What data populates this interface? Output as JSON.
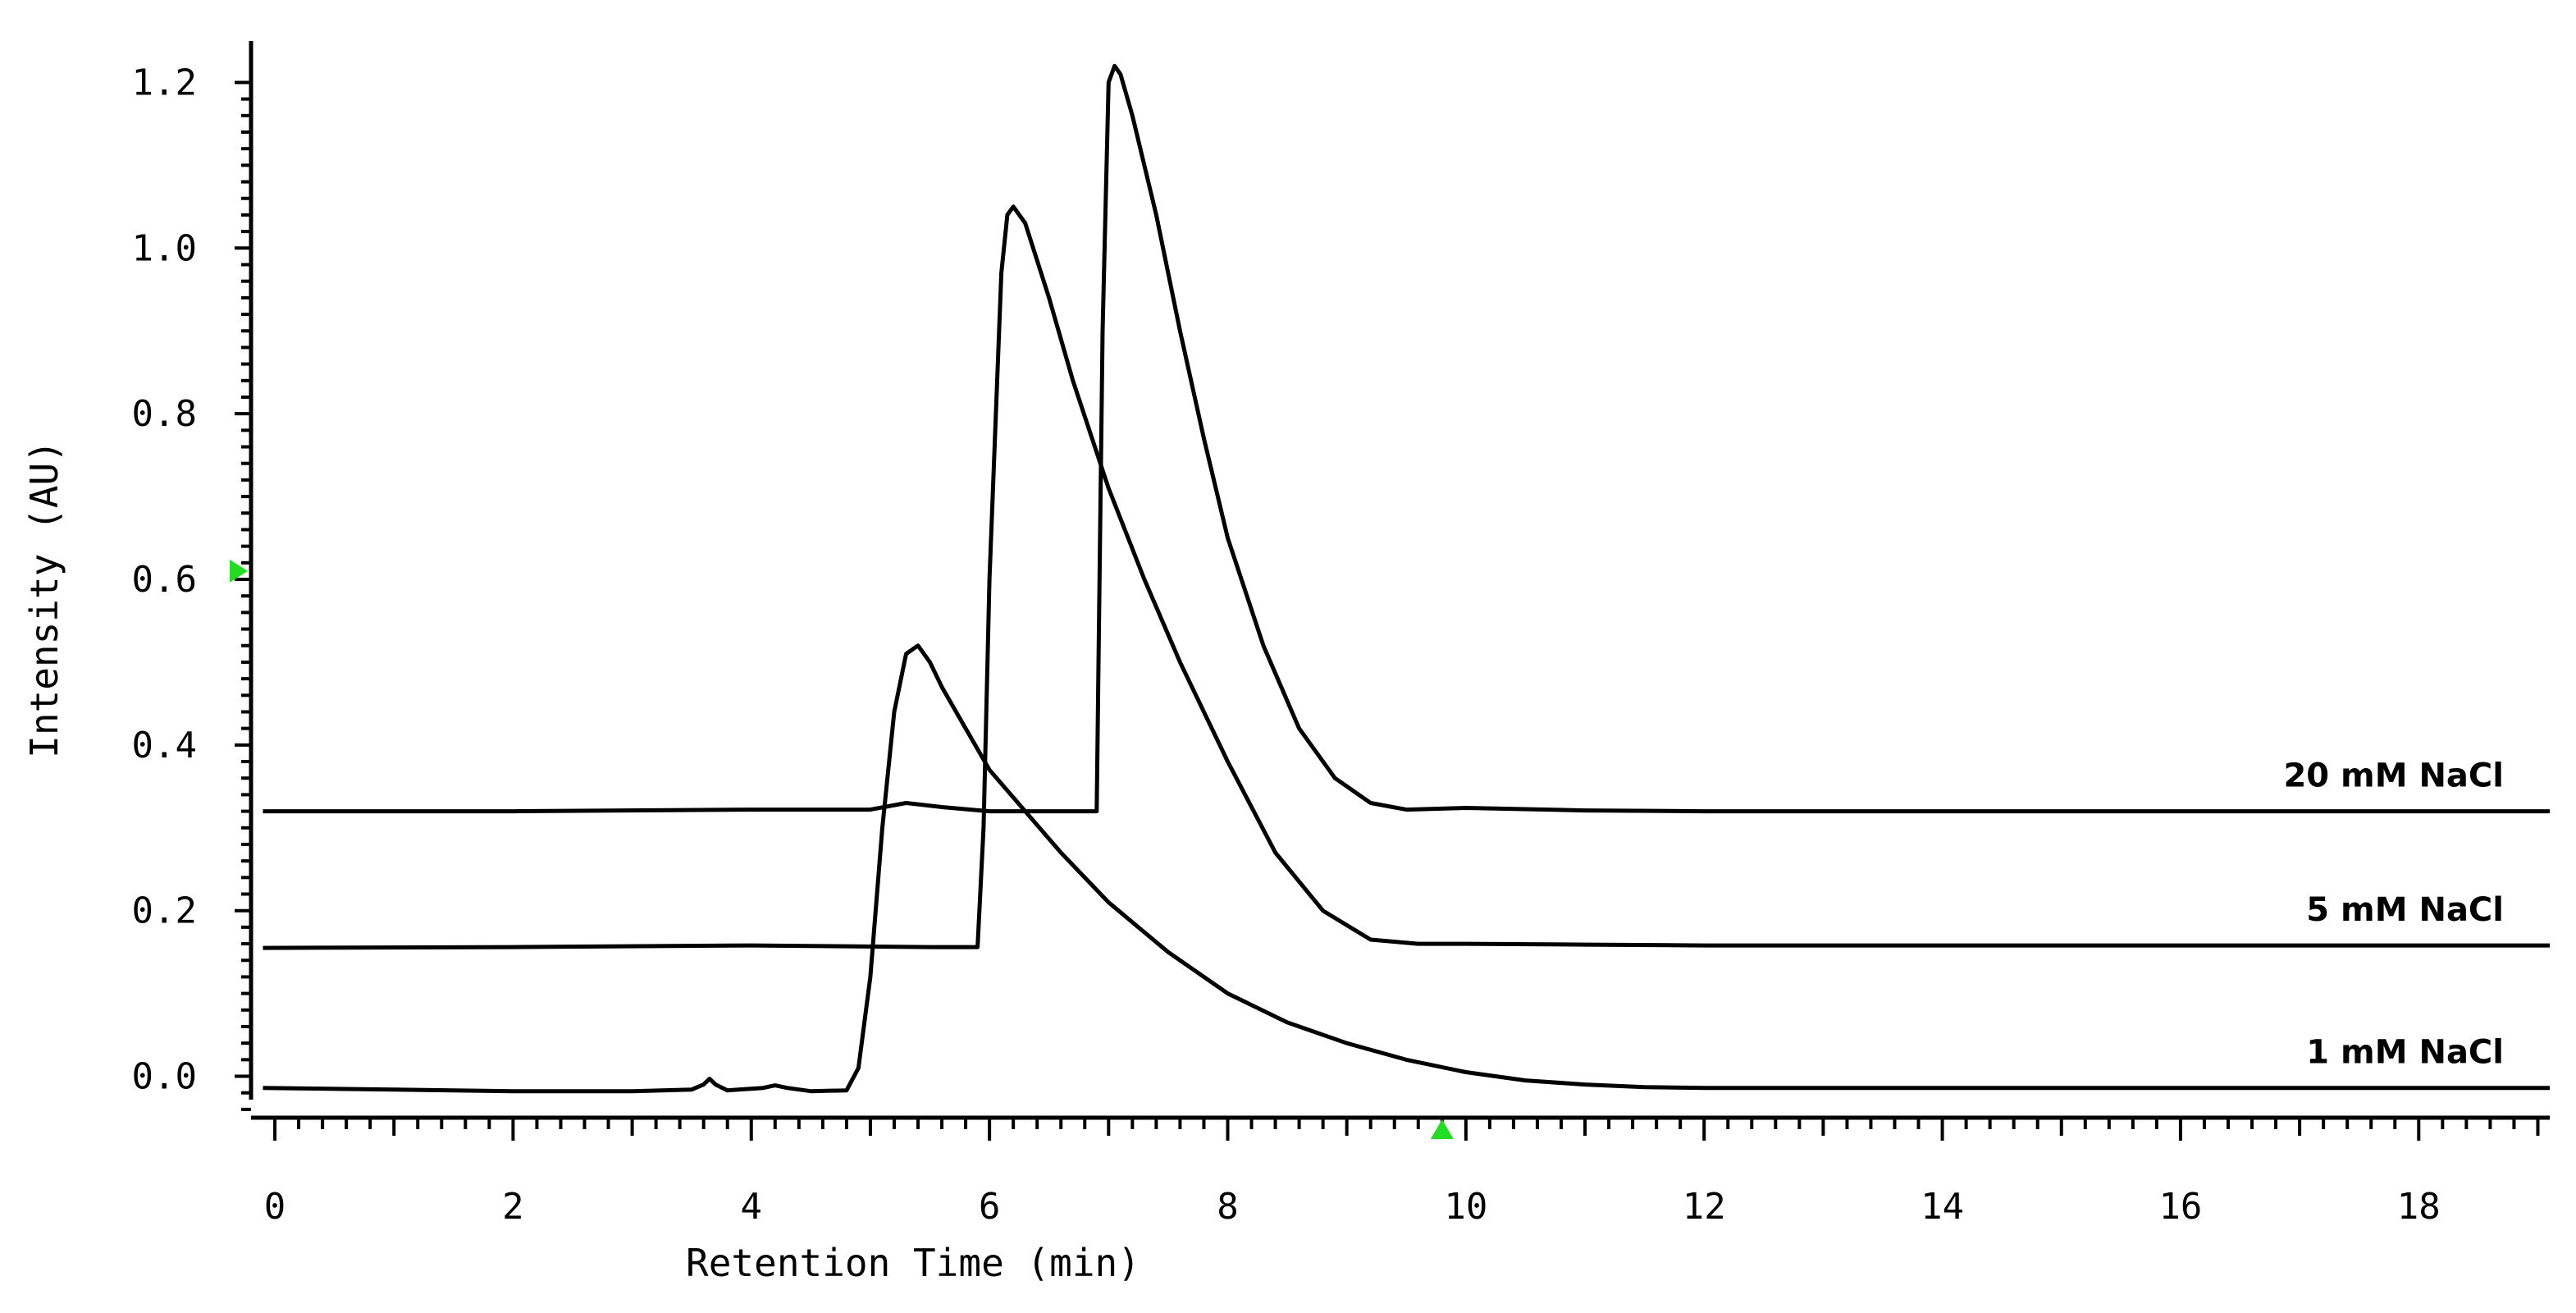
{
  "chart_data": {
    "type": "line",
    "xlabel": "Retention Time (min)",
    "ylabel": "Intensity (AU)",
    "xlim": [
      -0.2,
      19.1
    ],
    "ylim": [
      -0.05,
      1.25
    ],
    "x_ticks": [
      "0",
      "2",
      "4",
      "6",
      "8",
      "10",
      "12",
      "14",
      "16",
      "18"
    ],
    "y_ticks": [
      "0.0",
      "0.2",
      "0.4",
      "0.6",
      "0.8",
      "1.0",
      "1.2"
    ],
    "y_marker_value": 0.61,
    "x_marker_value": 9.8,
    "marker_color": "#22dd22",
    "series": [
      {
        "name": "1 mM NaCl",
        "x": [
          -0.1,
          1.0,
          2.0,
          3.0,
          3.5,
          3.6,
          3.65,
          3.7,
          3.8,
          4.1,
          4.2,
          4.3,
          4.5,
          4.8,
          4.9,
          5.0,
          5.1,
          5.2,
          5.3,
          5.4,
          5.5,
          5.6,
          5.8,
          6.0,
          6.3,
          6.6,
          7.0,
          7.5,
          8.0,
          8.5,
          9.0,
          9.5,
          10.0,
          10.5,
          11.0,
          11.5,
          12.0,
          14.0,
          16.0,
          19.1
        ],
        "y": [
          -0.014,
          -0.016,
          -0.018,
          -0.018,
          -0.016,
          -0.01,
          -0.003,
          -0.01,
          -0.017,
          -0.014,
          -0.011,
          -0.014,
          -0.018,
          -0.017,
          0.01,
          0.12,
          0.3,
          0.44,
          0.51,
          0.52,
          0.5,
          0.47,
          0.42,
          0.37,
          0.32,
          0.27,
          0.21,
          0.15,
          0.1,
          0.065,
          0.04,
          0.02,
          0.005,
          -0.005,
          -0.01,
          -0.013,
          -0.014,
          -0.014,
          -0.014,
          -0.014
        ]
      },
      {
        "name": "5 mM NaCl",
        "x": [
          -0.1,
          2.0,
          4.0,
          5.5,
          5.9,
          5.95,
          6.0,
          6.1,
          6.15,
          6.2,
          6.3,
          6.5,
          6.7,
          7.0,
          7.3,
          7.6,
          8.0,
          8.4,
          8.8,
          9.2,
          9.6,
          10.0,
          11.0,
          12.0,
          14.0,
          16.0,
          19.1
        ],
        "y": [
          0.155,
          0.156,
          0.158,
          0.156,
          0.156,
          0.3,
          0.6,
          0.97,
          1.04,
          1.05,
          1.03,
          0.94,
          0.84,
          0.71,
          0.6,
          0.5,
          0.38,
          0.27,
          0.2,
          0.165,
          0.16,
          0.16,
          0.159,
          0.158,
          0.158,
          0.158,
          0.158
        ]
      },
      {
        "name": "20 mM NaCl",
        "x": [
          -0.1,
          2.0,
          4.0,
          5.0,
          5.3,
          5.6,
          6.0,
          6.9,
          6.95,
          7.0,
          7.05,
          7.1,
          7.2,
          7.4,
          7.6,
          7.8,
          8.0,
          8.3,
          8.6,
          8.9,
          9.2,
          9.5,
          10.0,
          11.0,
          12.0,
          14.0,
          16.0,
          19.1
        ],
        "y": [
          0.32,
          0.32,
          0.322,
          0.322,
          0.33,
          0.325,
          0.32,
          0.32,
          0.9,
          1.2,
          1.22,
          1.21,
          1.16,
          1.04,
          0.9,
          0.77,
          0.65,
          0.52,
          0.42,
          0.36,
          0.33,
          0.322,
          0.324,
          0.321,
          0.32,
          0.32,
          0.32,
          0.32
        ]
      }
    ]
  }
}
